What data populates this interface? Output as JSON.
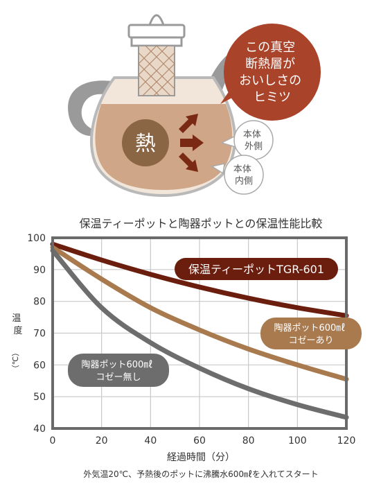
{
  "illustration": {
    "heat_label": "熱",
    "bubble_lines": [
      "この真空",
      "断熱層が",
      "おいしさの",
      "ヒミツ"
    ],
    "outer_label": [
      "本体",
      "外側"
    ],
    "inner_label": [
      "本体",
      "内側"
    ]
  },
  "chart_data": {
    "type": "line",
    "title": "保温ティーポットと陶器ポットとの保温性能比較",
    "xlabel": "経過時間（分）",
    "ylabel": [
      "温",
      "度",
      "（℃）"
    ],
    "xlim": [
      0,
      120
    ],
    "ylim": [
      40,
      100
    ],
    "xticks": [
      0,
      20,
      40,
      60,
      80,
      100,
      120
    ],
    "yticks": [
      40,
      50,
      60,
      70,
      80,
      90,
      100
    ],
    "grid": true,
    "series": [
      {
        "name": "保温ティーポットTGR-601",
        "color": "#6b1d0e",
        "x": [
          0,
          20,
          40,
          60,
          80,
          100,
          120
        ],
        "y": [
          98,
          93,
          88.5,
          84.5,
          81,
          78,
          75.5
        ]
      },
      {
        "name_lines": [
          "陶器ポット600㎖",
          "コゼーあり"
        ],
        "color": "#a87a4e",
        "x": [
          0,
          20,
          40,
          60,
          80,
          100,
          120
        ],
        "y": [
          97,
          87,
          78,
          71,
          65,
          60,
          55.5
        ]
      },
      {
        "name_lines": [
          "陶器ポット600㎖",
          "コゼー無し"
        ],
        "color": "#6d6d6d",
        "x": [
          0,
          20,
          40,
          60,
          80,
          100,
          120
        ],
        "y": [
          96,
          78,
          67,
          59,
          52.5,
          47.5,
          43.5
        ]
      }
    ],
    "footnote": "外気温20℃、予熱後のポットに沸騰水600㎖を入れてスタート"
  }
}
